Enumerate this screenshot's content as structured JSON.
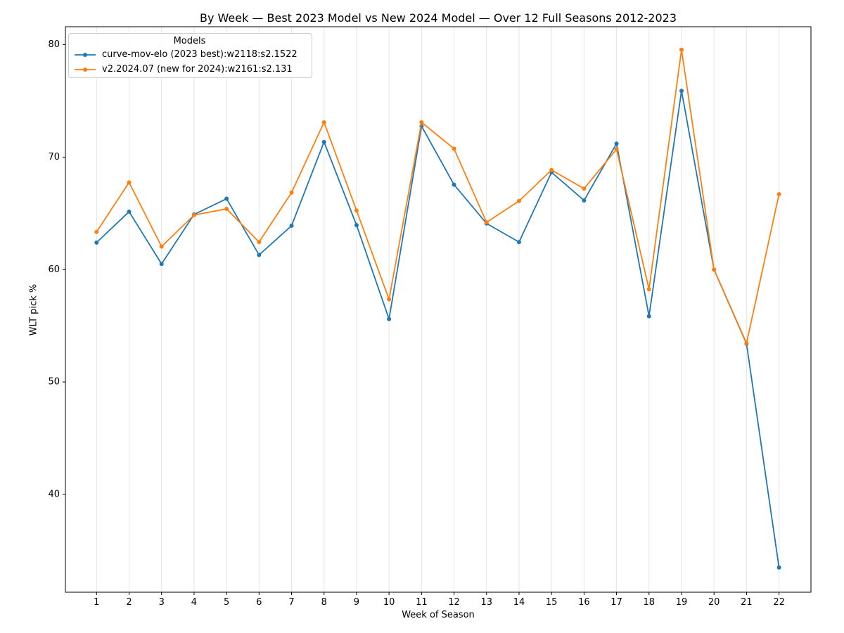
{
  "chart_data": {
    "type": "line",
    "title": "By Week — Best 2023 Model vs New 2024 Model — Over 12 Full Seasons 2012-2023",
    "xlabel": "Week of Season",
    "ylabel": "WLT pick %",
    "legend_title": "Models",
    "legend_position": "upper left",
    "grid": "vertical-only",
    "x": [
      1,
      2,
      3,
      4,
      5,
      6,
      7,
      8,
      9,
      10,
      11,
      12,
      13,
      14,
      15,
      16,
      17,
      18,
      19,
      20,
      21,
      22
    ],
    "yticks": [
      40,
      50,
      60,
      70,
      80
    ],
    "ylim": [
      31.3,
      81.6
    ],
    "series": [
      {
        "name": "curve-mov-elo (2023 best):w2118:s2.1522",
        "color": "#1f77b4",
        "marker": "dot",
        "values": [
          62.4,
          65.15,
          60.5,
          64.9,
          66.3,
          61.3,
          63.9,
          71.35,
          63.95,
          55.6,
          72.75,
          67.55,
          64.1,
          62.45,
          68.65,
          66.15,
          71.2,
          55.85,
          75.9,
          60.0,
          53.4,
          33.5
        ]
      },
      {
        "name": "v2.2024.07 (new for 2024):w2161:s2.131",
        "color": "#ff7f0e",
        "marker": "dot",
        "values": [
          63.35,
          67.75,
          62.05,
          64.85,
          65.4,
          62.45,
          66.85,
          73.1,
          65.25,
          57.35,
          73.1,
          70.75,
          64.2,
          66.1,
          68.85,
          67.2,
          70.7,
          58.25,
          79.55,
          60.0,
          53.45,
          66.7
        ]
      }
    ],
    "colors": {
      "grid": "#e5e5e5",
      "frame": "#000000",
      "tick": "#000000",
      "background": "#ffffff"
    }
  }
}
